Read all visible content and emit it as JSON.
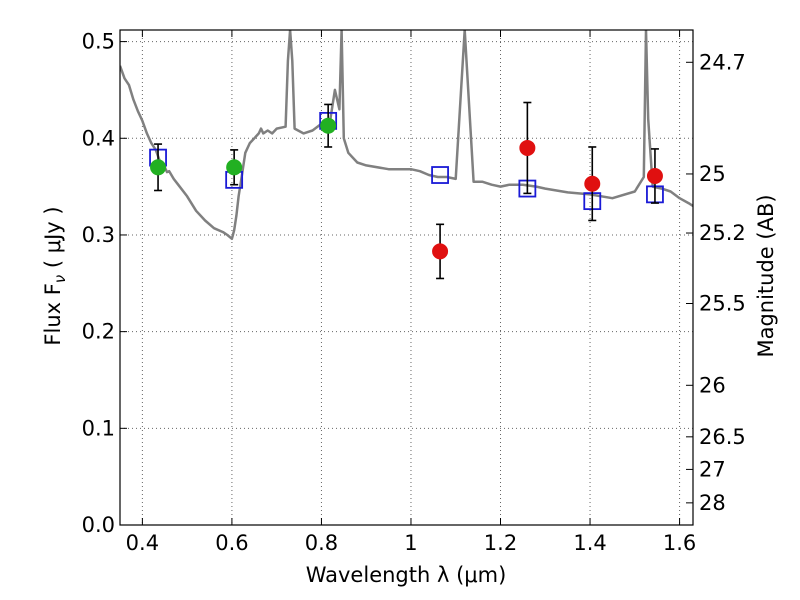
{
  "chart_data": {
    "type": "scatter",
    "xlabel": "Wavelength  λ (μm)",
    "ylabel": "Flux  F",
    "ylabel_sub": "ν",
    "ylabel_unit": " ( μJy )",
    "ylabel_right": "Magnitude (AB)",
    "xlim": [
      0.35,
      1.63
    ],
    "ylim": [
      0.0,
      0.512
    ],
    "grid": true,
    "x_ticks": [
      0.4,
      0.6,
      0.8,
      1.0,
      1.2,
      1.4,
      1.6
    ],
    "x_tick_labels": [
      "0.4",
      "0.6",
      "0.8",
      "1",
      "1.2",
      "1.4",
      "1.6"
    ],
    "y_ticks": [
      0.0,
      0.1,
      0.2,
      0.3,
      0.4,
      0.5
    ],
    "y_tick_labels": [
      "0.0",
      "0.1",
      "0.2",
      "0.3",
      "0.4",
      "0.5"
    ],
    "right_ticks": [
      {
        "label": "24.7",
        "flux": 0.4786
      },
      {
        "label": "25",
        "flux": 0.3631
      },
      {
        "label": "25.2",
        "flux": 0.302
      },
      {
        "label": "25.5",
        "flux": 0.2291
      },
      {
        "label": "26",
        "flux": 0.1445
      },
      {
        "label": "26.5",
        "flux": 0.0912
      },
      {
        "label": "27",
        "flux": 0.0575
      },
      {
        "label": "28",
        "flux": 0.0229
      }
    ],
    "series": [
      {
        "kind": "line",
        "color": "#808080",
        "x": [
          0.35,
          0.36,
          0.37,
          0.38,
          0.39,
          0.4,
          0.41,
          0.42,
          0.43,
          0.44,
          0.45,
          0.455,
          0.46,
          0.47,
          0.48,
          0.5,
          0.52,
          0.54,
          0.56,
          0.58,
          0.59,
          0.6,
          0.605,
          0.61,
          0.615,
          0.62,
          0.625,
          0.63,
          0.64,
          0.65,
          0.66,
          0.665,
          0.67,
          0.68,
          0.69,
          0.7,
          0.72,
          0.725,
          0.73,
          0.735,
          0.74,
          0.76,
          0.78,
          0.8,
          0.82,
          0.83,
          0.84,
          0.845,
          0.85,
          0.86,
          0.88,
          0.9,
          0.95,
          1.0,
          1.02,
          1.04,
          1.06,
          1.08,
          1.1,
          1.12,
          1.14,
          1.16,
          1.18,
          1.2,
          1.22,
          1.25,
          1.28,
          1.3,
          1.35,
          1.4,
          1.45,
          1.5,
          1.52,
          1.525,
          1.53,
          1.54,
          1.56,
          1.58,
          1.6,
          1.62,
          1.63
        ],
        "y": [
          0.475,
          0.462,
          0.455,
          0.44,
          0.428,
          0.418,
          0.405,
          0.395,
          0.388,
          0.375,
          0.37,
          0.365,
          0.366,
          0.358,
          0.352,
          0.34,
          0.325,
          0.315,
          0.307,
          0.303,
          0.3,
          0.296,
          0.305,
          0.32,
          0.34,
          0.355,
          0.37,
          0.385,
          0.395,
          0.4,
          0.405,
          0.41,
          0.405,
          0.408,
          0.405,
          0.41,
          0.412,
          0.48,
          0.512,
          0.48,
          0.41,
          0.405,
          0.408,
          0.415,
          0.42,
          0.45,
          0.43,
          0.512,
          0.4,
          0.385,
          0.375,
          0.372,
          0.368,
          0.368,
          0.366,
          0.362,
          0.36,
          0.36,
          0.358,
          0.512,
          0.355,
          0.355,
          0.352,
          0.35,
          0.352,
          0.352,
          0.35,
          0.348,
          0.344,
          0.342,
          0.338,
          0.345,
          0.36,
          0.512,
          0.42,
          0.35,
          0.348,
          0.345,
          0.338,
          0.333,
          0.33
        ]
      },
      {
        "kind": "markers",
        "marker": "square-open",
        "color": "#1a1ad6",
        "x": [
          0.435,
          0.605,
          0.815,
          1.065,
          1.26,
          1.405,
          1.545
        ],
        "y": [
          0.38,
          0.357,
          0.418,
          0.362,
          0.348,
          0.335,
          0.342
        ]
      },
      {
        "kind": "markers",
        "marker": "circle",
        "color": "#22b022",
        "x": [
          0.435,
          0.605,
          0.815
        ],
        "y": [
          0.37,
          0.37,
          0.413
        ],
        "yerr": [
          0.024,
          0.018,
          0.022
        ]
      },
      {
        "kind": "markers",
        "marker": "circle",
        "color": "#e01010",
        "x": [
          1.065,
          1.26,
          1.405,
          1.545
        ],
        "y": [
          0.283,
          0.39,
          0.353,
          0.361
        ],
        "yerr": [
          0.028,
          0.047,
          0.038,
          0.028
        ]
      }
    ]
  }
}
